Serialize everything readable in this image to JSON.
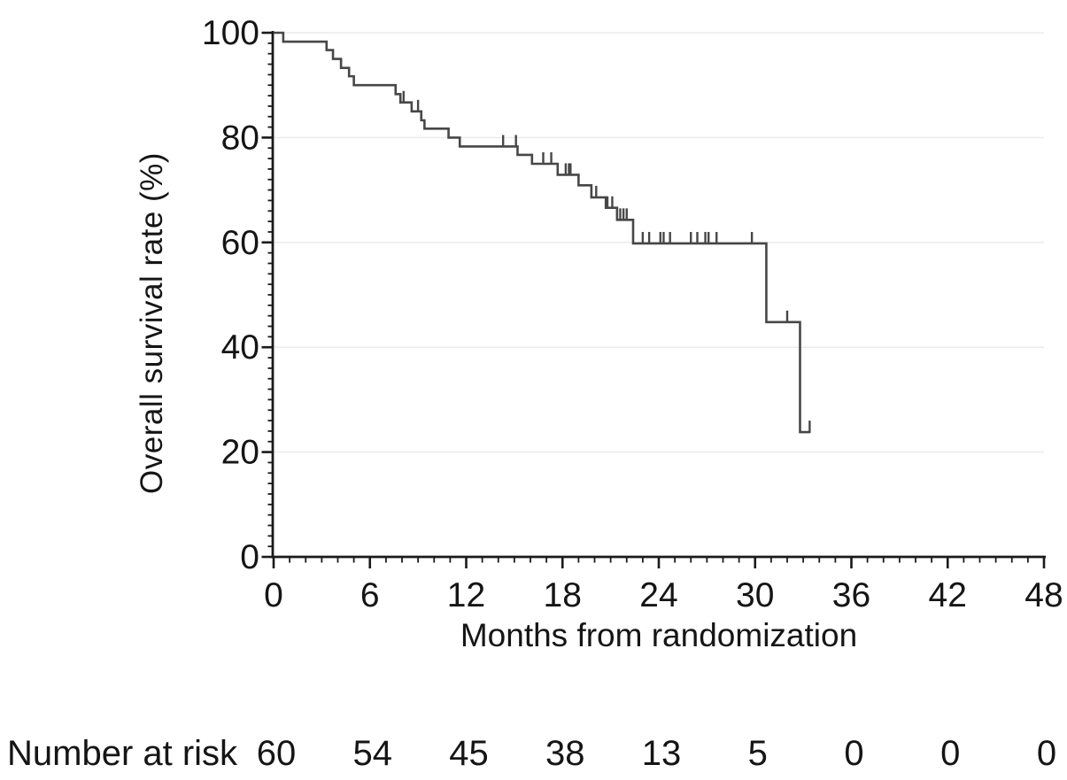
{
  "figure": {
    "y_axis_title": "Overall survival rate (%)",
    "x_axis_title": "Months from randomization",
    "risk_label": "Number at risk"
  },
  "chart_data": {
    "type": "line",
    "chart_style": "kaplan-meier-step-curve",
    "title": "",
    "xlabel": "Months from randomization",
    "ylabel": "Overall survival rate (%)",
    "xlim": [
      0,
      48
    ],
    "ylim": [
      0,
      100
    ],
    "x_ticks": [
      0,
      6,
      12,
      18,
      24,
      30,
      36,
      42,
      48
    ],
    "y_ticks": [
      0,
      20,
      40,
      60,
      80,
      100
    ],
    "x_minor_tick_step": 1,
    "y_minor_tick_step": 2,
    "grid": "faint horizontal lines at y major ticks",
    "legend_position": "none",
    "colors": {
      "line": "#474747",
      "axis": "#1a1a1a",
      "grid": "#ebebeb",
      "text": "#151515"
    },
    "series": [
      {
        "name": "Overall survival",
        "steps_month_percent": [
          [
            0,
            100
          ],
          [
            0.6,
            98.3
          ],
          [
            3.3,
            96.7
          ],
          [
            3.7,
            95.0
          ],
          [
            4.2,
            93.3
          ],
          [
            4.7,
            91.7
          ],
          [
            5.0,
            90.0
          ],
          [
            7.6,
            88.3
          ],
          [
            7.9,
            86.7
          ],
          [
            8.6,
            85.0
          ],
          [
            9.2,
            83.3
          ],
          [
            9.4,
            81.7
          ],
          [
            10.9,
            80.0
          ],
          [
            11.6,
            78.3
          ],
          [
            15.2,
            76.7
          ],
          [
            16.1,
            75.0
          ],
          [
            17.7,
            72.9
          ],
          [
            19.0,
            70.9
          ],
          [
            19.8,
            68.6
          ],
          [
            20.7,
            66.6
          ],
          [
            21.4,
            64.3
          ],
          [
            22.4,
            59.8
          ],
          [
            30.7,
            44.8
          ],
          [
            32.8,
            23.8
          ]
        ],
        "end_month": 33.4,
        "censor_marks_month_percent": [
          [
            8.1,
            86.7
          ],
          [
            9.0,
            85.0
          ],
          [
            14.3,
            78.3
          ],
          [
            15.1,
            78.3
          ],
          [
            16.8,
            75.0
          ],
          [
            17.3,
            75.0
          ],
          [
            18.2,
            72.9
          ],
          [
            18.4,
            72.9
          ],
          [
            18.5,
            72.9
          ],
          [
            20.1,
            68.6
          ],
          [
            20.8,
            66.6
          ],
          [
            21.1,
            66.6
          ],
          [
            21.6,
            64.3
          ],
          [
            21.8,
            64.3
          ],
          [
            22.0,
            64.3
          ],
          [
            23.0,
            59.8
          ],
          [
            23.4,
            59.8
          ],
          [
            24.1,
            59.8
          ],
          [
            24.3,
            59.8
          ],
          [
            24.7,
            59.8
          ],
          [
            26.0,
            59.8
          ],
          [
            26.4,
            59.8
          ],
          [
            26.9,
            59.8
          ],
          [
            27.1,
            59.8
          ],
          [
            27.6,
            59.8
          ],
          [
            29.8,
            59.8
          ],
          [
            32.0,
            44.8
          ],
          [
            33.4,
            23.8
          ]
        ]
      }
    ],
    "number_at_risk": {
      "label": "Number at risk",
      "months": [
        0,
        6,
        12,
        18,
        24,
        30,
        36,
        42,
        48
      ],
      "values": [
        60,
        54,
        45,
        38,
        13,
        5,
        0,
        0,
        0
      ]
    }
  }
}
